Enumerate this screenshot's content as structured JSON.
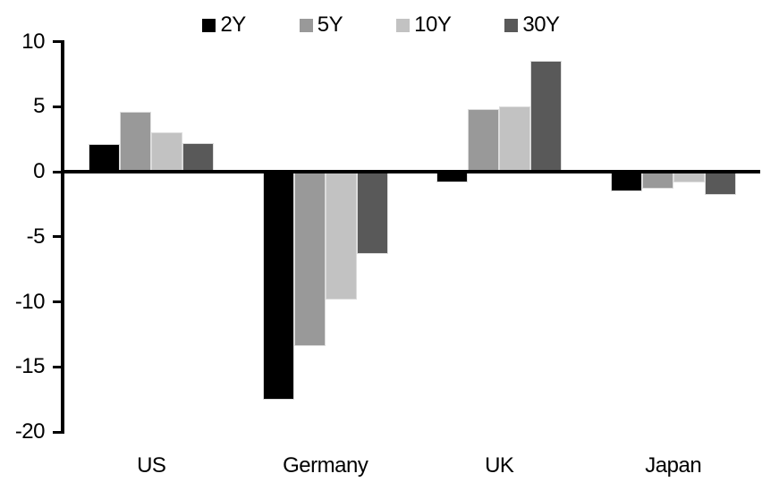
{
  "chart_data": {
    "type": "bar",
    "title": "",
    "categories": [
      "US",
      "Germany",
      "UK",
      "Japan"
    ],
    "series": [
      {
        "name": "2Y",
        "color": "#000000",
        "values": [
          2.1,
          -17.5,
          -0.8,
          -1.5
        ]
      },
      {
        "name": "5Y",
        "color": "#999999",
        "values": [
          4.6,
          -13.4,
          4.8,
          -1.3
        ]
      },
      {
        "name": "10Y",
        "color": "#c2c2c2",
        "values": [
          3.0,
          -9.8,
          5.0,
          -0.8
        ]
      },
      {
        "name": "30Y",
        "color": "#595959",
        "values": [
          2.2,
          -6.3,
          8.5,
          -1.8
        ]
      }
    ],
    "xlabel": "",
    "ylabel": "",
    "ylim": [
      -20,
      10
    ],
    "yticks": [
      10,
      5,
      0,
      -5,
      -10,
      -15,
      -20
    ],
    "legend_position": "top",
    "grid": false,
    "axis_color": "#000000",
    "bar_outline_color": "#dcdcdc",
    "background_color": "#ffffff"
  }
}
